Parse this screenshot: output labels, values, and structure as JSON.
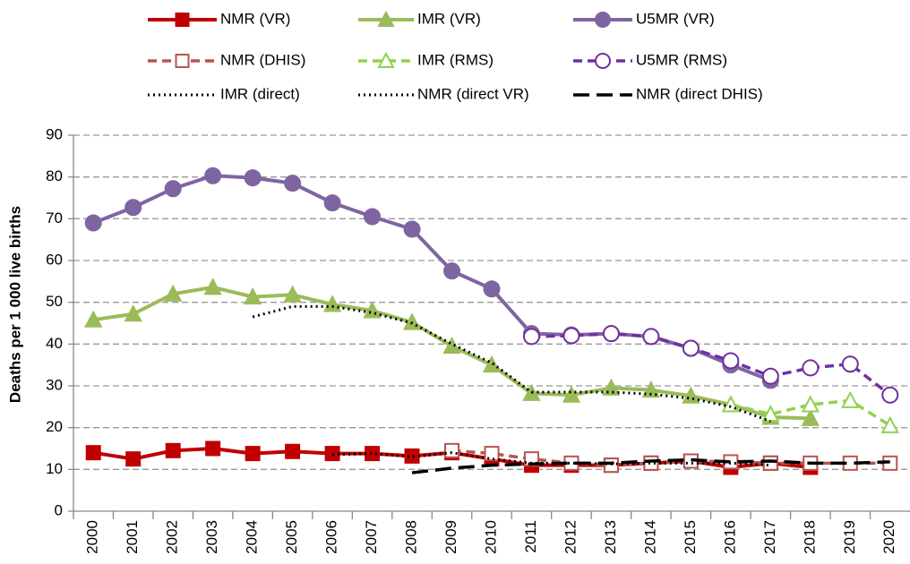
{
  "chart_data": {
    "type": "line",
    "y_label": "Deaths per 1 000 live births",
    "categories": [
      "2000",
      "2001",
      "2002",
      "2003",
      "2004",
      "2005",
      "2006",
      "2007",
      "2008",
      "2009",
      "2010",
      "2011",
      "2012",
      "2013",
      "2014",
      "2015",
      "2016",
      "2017",
      "2018",
      "2019",
      "2020"
    ],
    "ylim": [
      0,
      90
    ],
    "yticks": [
      0,
      10,
      20,
      30,
      40,
      50,
      60,
      70,
      80,
      90
    ],
    "grid": true,
    "series": [
      {
        "name": "NMR (VR)",
        "color": "#c00000",
        "marker": "square",
        "filled": true,
        "dash": "solid",
        "values": [
          14,
          12.5,
          14.5,
          15,
          13.8,
          14.3,
          13.8,
          13.8,
          13.2,
          14,
          12.5,
          11,
          11,
          11,
          11.5,
          12,
          10.5,
          11.5,
          10.5,
          null,
          null
        ]
      },
      {
        "name": "IMR (VR)",
        "color": "#9bbb59",
        "marker": "triangle",
        "filled": true,
        "dash": "solid",
        "values": [
          45.8,
          47.2,
          52,
          53.6,
          51.3,
          51.8,
          49.5,
          48,
          45.2,
          39.5,
          35,
          28.2,
          27.8,
          29.5,
          29,
          27.6,
          25.5,
          22.5,
          22.2,
          null,
          null
        ]
      },
      {
        "name": "U5MR (VR)",
        "color": "#7f64a2",
        "marker": "circle",
        "filled": true,
        "dash": "solid",
        "values": [
          69,
          72.7,
          77.2,
          80.3,
          79.8,
          78.5,
          73.8,
          70.5,
          67.5,
          57.5,
          53.2,
          42.5,
          42.2,
          42.5,
          41.8,
          39,
          35,
          31.3,
          null,
          null,
          null
        ]
      },
      {
        "name": "NMR (DHIS)",
        "color": "#b85450",
        "marker": "square",
        "filled": false,
        "dash": "dash",
        "values": [
          null,
          null,
          null,
          null,
          null,
          null,
          null,
          null,
          null,
          14.5,
          13.8,
          12.5,
          11.5,
          11,
          11.5,
          12,
          11.8,
          11.5,
          11.5,
          11.5,
          11.5
        ]
      },
      {
        "name": "IMR (RMS)",
        "color": "#92d050",
        "marker": "triangle",
        "filled": false,
        "dash": "dash",
        "values": [
          null,
          null,
          null,
          null,
          null,
          null,
          null,
          null,
          null,
          null,
          null,
          null,
          null,
          null,
          null,
          null,
          25.5,
          23.2,
          25.5,
          26.5,
          20.5
        ]
      },
      {
        "name": "U5MR (RMS)",
        "color": "#7030a0",
        "marker": "circle",
        "filled": false,
        "dash": "dash",
        "values": [
          null,
          null,
          null,
          null,
          null,
          null,
          null,
          null,
          null,
          null,
          null,
          41.8,
          42,
          42.5,
          41.8,
          39,
          36,
          32.3,
          34.3,
          35.2,
          27.8
        ]
      },
      {
        "name": "IMR (direct)",
        "color": "#000000",
        "marker": "none",
        "filled": false,
        "dash": "dot",
        "values": [
          null,
          null,
          null,
          null,
          46.5,
          49,
          49,
          47.5,
          45,
          40,
          35.5,
          28.5,
          28.5,
          28.5,
          28,
          27,
          25,
          21.5,
          null,
          null,
          null
        ]
      },
      {
        "name": "NMR (direct VR)",
        "color": "#000000",
        "marker": "none",
        "filled": false,
        "dash": "dot",
        "values": [
          null,
          null,
          null,
          null,
          null,
          null,
          13.5,
          13.8,
          13,
          14,
          12.5,
          11.5,
          11.5,
          11.3,
          11.5,
          11.5,
          11.5,
          11,
          null,
          null,
          null
        ]
      },
      {
        "name": "NMR (direct DHIS)",
        "color": "#000000",
        "marker": "none",
        "filled": false,
        "dash": "longdash",
        "values": [
          null,
          null,
          null,
          null,
          null,
          null,
          null,
          null,
          9.2,
          10.3,
          11,
          11.3,
          11.5,
          11.5,
          12,
          12.3,
          11.8,
          12,
          11.5,
          11.5,
          11.8
        ]
      }
    ]
  }
}
